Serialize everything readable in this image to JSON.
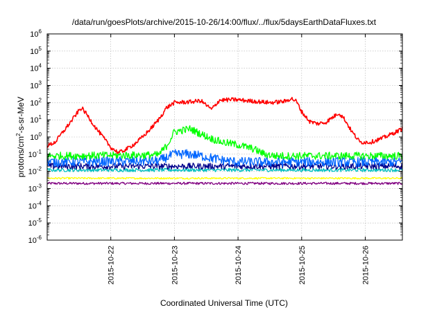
{
  "chart_data": {
    "type": "line",
    "title": "/data/run/goesPlots/archive/2015-10-26/14:00/flux/../flux/5daysEarthDataFluxes.txt",
    "xlabel": "Coordinated Universal Time (UTC)",
    "ylabel": {
      "base": "protons/cm",
      "sup": "2",
      "rest": "-s-sr-MeV"
    },
    "x_range": [
      "2015-10-21 00:00",
      "2015-10-26 14:00"
    ],
    "ylim": [
      1e-06,
      1000000.0
    ],
    "y_scale": "log",
    "grid": true,
    "legend": "none",
    "x_ticks": [
      "2015-10-22",
      "2015-10-23",
      "2015-10-24",
      "2015-10-25",
      "2015-10-26"
    ],
    "y_ticks": [
      {
        "base": "10",
        "exp": "-6"
      },
      {
        "base": "10",
        "exp": "-5"
      },
      {
        "base": "10",
        "exp": "-4"
      },
      {
        "base": "10",
        "exp": "-3"
      },
      {
        "base": "10",
        "exp": "-2"
      },
      {
        "base": "10",
        "exp": "-1"
      },
      {
        "base": "10",
        "exp": "0"
      },
      {
        "base": "10",
        "exp": "1"
      },
      {
        "base": "10",
        "exp": "2"
      },
      {
        "base": "10",
        "exp": "3"
      },
      {
        "base": "10",
        "exp": "4"
      },
      {
        "base": "10",
        "exp": "5"
      },
      {
        "base": "10",
        "exp": "6"
      }
    ],
    "series": [
      {
        "color": "#ff0000",
        "noise": 0.12,
        "points": [
          [
            "2015-10-21 00:00",
            0.3
          ],
          [
            "2015-10-21 03:00",
            0.5
          ],
          [
            "2015-10-21 06:00",
            2
          ],
          [
            "2015-10-21 09:00",
            8
          ],
          [
            "2015-10-21 12:00",
            35
          ],
          [
            "2015-10-21 13:00",
            50
          ],
          [
            "2015-10-21 15:00",
            20
          ],
          [
            "2015-10-21 18:00",
            4
          ],
          [
            "2015-10-21 21:00",
            1
          ],
          [
            "2015-10-22 00:00",
            0.25
          ],
          [
            "2015-10-22 03:00",
            0.12
          ],
          [
            "2015-10-22 06:00",
            0.2
          ],
          [
            "2015-10-22 09:00",
            0.4
          ],
          [
            "2015-10-22 12:00",
            1
          ],
          [
            "2015-10-22 15:00",
            3
          ],
          [
            "2015-10-22 18:00",
            10
          ],
          [
            "2015-10-22 21:00",
            50
          ],
          [
            "2015-10-23 00:00",
            100
          ],
          [
            "2015-10-23 06:00",
            110
          ],
          [
            "2015-10-23 10:00",
            130
          ],
          [
            "2015-10-23 14:00",
            40
          ],
          [
            "2015-10-23 17:00",
            140
          ],
          [
            "2015-10-23 23:00",
            150
          ],
          [
            "2015-10-24 06:00",
            120
          ],
          [
            "2015-10-24 12:00",
            100
          ],
          [
            "2015-10-24 18:00",
            120
          ],
          [
            "2015-10-24 20:00",
            180
          ],
          [
            "2015-10-24 22:00",
            120
          ],
          [
            "2015-10-25 00:00",
            30
          ],
          [
            "2015-10-25 03:00",
            8
          ],
          [
            "2015-10-25 06:00",
            6
          ],
          [
            "2015-10-25 09:00",
            7
          ],
          [
            "2015-10-25 12:00",
            15
          ],
          [
            "2015-10-25 14:00",
            25
          ],
          [
            "2015-10-25 16:00",
            12
          ],
          [
            "2015-10-25 19:00",
            2
          ],
          [
            "2015-10-25 22:00",
            0.5
          ],
          [
            "2015-10-26 02:00",
            0.5
          ],
          [
            "2015-10-26 06:00",
            0.8
          ],
          [
            "2015-10-26 10:00",
            1.5
          ],
          [
            "2015-10-26 14:00",
            3
          ]
        ]
      },
      {
        "color": "#00ff00",
        "noise": 0.22,
        "points": [
          [
            "2015-10-21 00:00",
            0.08
          ],
          [
            "2015-10-22 18:00",
            0.09
          ],
          [
            "2015-10-22 21:00",
            0.3
          ],
          [
            "2015-10-23 00:00",
            2
          ],
          [
            "2015-10-23 06:00",
            3
          ],
          [
            "2015-10-23 10:00",
            1.5
          ],
          [
            "2015-10-23 14:00",
            0.8
          ],
          [
            "2015-10-23 18:00",
            0.5
          ],
          [
            "2015-10-24 00:00",
            0.35
          ],
          [
            "2015-10-24 06:00",
            0.2
          ],
          [
            "2015-10-24 10:00",
            0.1
          ],
          [
            "2015-10-24 14:00",
            0.08
          ],
          [
            "2015-10-26 14:00",
            0.08
          ]
        ]
      },
      {
        "color": "#0066ff",
        "noise": 0.28,
        "points": [
          [
            "2015-10-21 00:00",
            0.035
          ],
          [
            "2015-10-22 18:00",
            0.04
          ],
          [
            "2015-10-23 00:00",
            0.1
          ],
          [
            "2015-10-23 06:00",
            0.1
          ],
          [
            "2015-10-23 12:00",
            0.07
          ],
          [
            "2015-10-23 18:00",
            0.045
          ],
          [
            "2015-10-24 00:00",
            0.035
          ],
          [
            "2015-10-26 14:00",
            0.035
          ]
        ]
      },
      {
        "color": "#00008b",
        "noise": 0.18,
        "points": [
          [
            "2015-10-21 00:00",
            0.02
          ],
          [
            "2015-10-26 14:00",
            0.02
          ]
        ]
      },
      {
        "color": "#00c0c0",
        "noise": 0.1,
        "points": [
          [
            "2015-10-21 00:00",
            0.012
          ],
          [
            "2015-10-26 14:00",
            0.012
          ]
        ]
      },
      {
        "color": "#ffff00",
        "noise": 0.05,
        "points": [
          [
            "2015-10-21 00:00",
            0.004
          ],
          [
            "2015-10-26 14:00",
            0.004
          ]
        ]
      },
      {
        "color": "#800080",
        "noise": 0.07,
        "points": [
          [
            "2015-10-21 00:00",
            0.002
          ],
          [
            "2015-10-26 14:00",
            0.002
          ]
        ]
      }
    ]
  }
}
